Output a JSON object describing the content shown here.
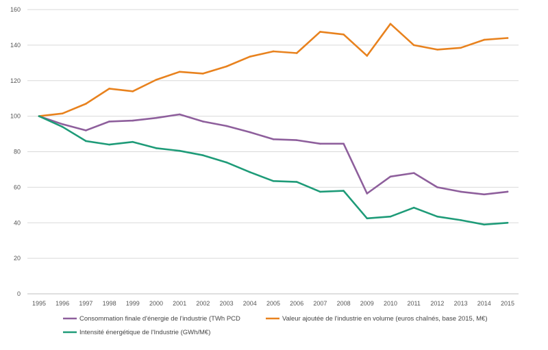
{
  "chart_data": {
    "type": "line",
    "title": "",
    "xlabel": "",
    "ylabel": "",
    "categories": [
      "1995",
      "1996",
      "1997",
      "1998",
      "1999",
      "2000",
      "2001",
      "2002",
      "2003",
      "2004",
      "2005",
      "2006",
      "2007",
      "2008",
      "2009",
      "2010",
      "2011",
      "2012",
      "2013",
      "2014",
      "2015"
    ],
    "ylim": [
      0,
      160
    ],
    "yticks": [
      0,
      20,
      40,
      60,
      80,
      100,
      120,
      140,
      160
    ],
    "ytick_labels": [
      "0",
      "20",
      "40",
      "60",
      "80",
      "100",
      "120",
      "140",
      "160"
    ],
    "grid": "horizontal",
    "legend_position": "bottom",
    "series": [
      {
        "name": "Consommation finale d'énergie de l'industrie (TWh PCD",
        "color": "#8e5f9c",
        "values": [
          100,
          95.5,
          92,
          97,
          97.5,
          99,
          101,
          97,
          94.5,
          91,
          87,
          86.5,
          84.5,
          84.5,
          56.5,
          66,
          68,
          60,
          57.5,
          56,
          57.5
        ]
      },
      {
        "name": "Valeur ajoutée de l'industrie en volume (euros chaînés, base 2015, M€)",
        "color": "#e8821e",
        "values": [
          100,
          101.5,
          107,
          115.5,
          114,
          120.5,
          125,
          124,
          128,
          133.5,
          136.5,
          135.5,
          147.5,
          146,
          134,
          152,
          140,
          137.5,
          138.5,
          143,
          144
        ]
      },
      {
        "name": "Intensité énergétique de l'Industrie (GWh/M€)",
        "color": "#1e9b78",
        "values": [
          100,
          94,
          86,
          84,
          85.5,
          82,
          80.5,
          78,
          74,
          68.5,
          63.5,
          63,
          57.5,
          58,
          42.5,
          43.5,
          48.5,
          43.5,
          41.5,
          39,
          40
        ]
      }
    ]
  }
}
